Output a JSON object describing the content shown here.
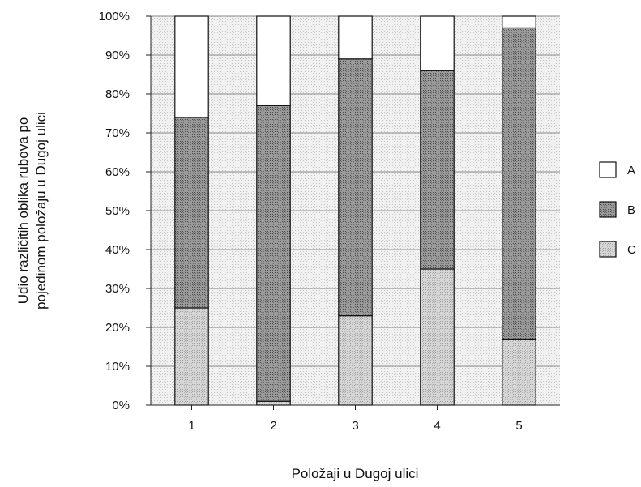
{
  "chart_data": {
    "type": "bar",
    "stacked": true,
    "percent": true,
    "categories": [
      "1",
      "2",
      "3",
      "4",
      "5"
    ],
    "series": [
      {
        "name": "C",
        "values": [
          25,
          1,
          23,
          35,
          17
        ],
        "color": "#c8c8c8"
      },
      {
        "name": "B",
        "values": [
          49,
          76,
          66,
          51,
          80
        ],
        "color": "#8e8e8e"
      },
      {
        "name": "A",
        "values": [
          26,
          23,
          11,
          14,
          3
        ],
        "color": "#ffffff"
      }
    ],
    "xlabel": "Položaji u Dugoj ulici",
    "ylabel_lines": [
      "Udio različitih oblika rubova po",
      "pojedinom položaju u Dugoj ulici"
    ],
    "ylim": [
      0,
      100
    ],
    "yticks": [
      "0%",
      "10%",
      "20%",
      "30%",
      "40%",
      "50%",
      "60%",
      "70%",
      "80%",
      "90%",
      "100%"
    ],
    "legend_position": "right",
    "grid": true
  }
}
